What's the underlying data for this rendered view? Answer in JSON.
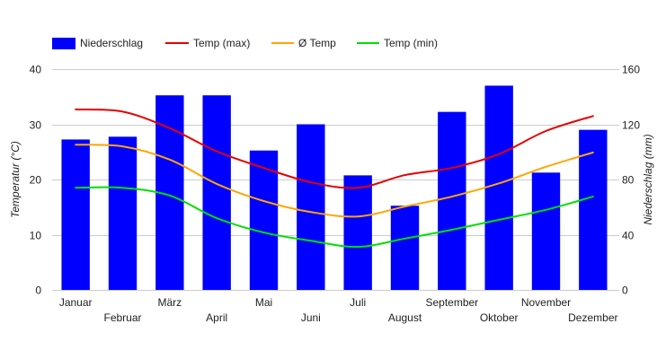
{
  "chart_data": {
    "type": "bar",
    "categories": [
      "Januar",
      "Februar",
      "März",
      "April",
      "Mai",
      "Juni",
      "Juli",
      "August",
      "September",
      "Oktober",
      "November",
      "Dezember"
    ],
    "series": [
      {
        "name": "Niederschlag",
        "kind": "bar",
        "axis": "right",
        "color": "#0000ff",
        "values": [
          109,
          111,
          141,
          141,
          101,
          120,
          83,
          61,
          129,
          148,
          85,
          116
        ]
      },
      {
        "name": "Temp (max)",
        "kind": "line",
        "axis": "left",
        "color": "#e60000",
        "values": [
          32.7,
          32.3,
          29.3,
          25.1,
          22.1,
          19.5,
          18.5,
          20.8,
          22.1,
          24.6,
          28.8,
          31.5
        ]
      },
      {
        "name": "Ø Temp",
        "kind": "line",
        "axis": "left",
        "color": "#ffa500",
        "values": [
          26.3,
          26.0,
          23.6,
          19.2,
          16.1,
          14.1,
          13.3,
          15.1,
          16.9,
          19.3,
          22.3,
          24.9
        ]
      },
      {
        "name": "Temp (min)",
        "kind": "line",
        "axis": "left",
        "color": "#00e000",
        "values": [
          18.5,
          18.5,
          17.1,
          13.0,
          10.4,
          8.9,
          7.8,
          9.3,
          10.9,
          12.7,
          14.5,
          16.9
        ]
      }
    ],
    "ylabel": "Temperatur (°C)",
    "ylabel_right": "Niederschlag (mm)",
    "ylim": [
      0,
      40
    ],
    "ylim_right": [
      0,
      160
    ],
    "yticks": [
      "0",
      "10",
      "20",
      "30",
      "40"
    ],
    "yticks_right": [
      "0",
      "40",
      "80",
      "120",
      "160"
    ],
    "grid": true,
    "legend": "top-left"
  }
}
